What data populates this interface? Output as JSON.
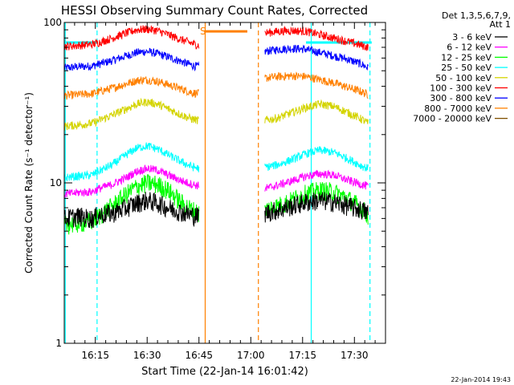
{
  "chart_data": {
    "type": "line",
    "title": "HESSI Observing Summary Count Rates, Corrected",
    "ylabel": "Corrected Count Rate (s⁻¹ detector⁻¹)",
    "xlabel": "Start Time (22-Jan-14 16:01:42)",
    "timestamp": "22-Jan-2014 19:43",
    "x_unit": "minutes after 16:00",
    "xlim": [
      6,
      99
    ],
    "ylim": [
      1,
      100
    ],
    "yscale": "log",
    "x_ticks": [
      {
        "label": "16:15",
        "x": 15
      },
      {
        "label": "16:30",
        "x": 30
      },
      {
        "label": "16:45",
        "x": 45
      },
      {
        "label": "17:00",
        "x": 60
      },
      {
        "label": "17:15",
        "x": 75
      },
      {
        "label": "17:30",
        "x": 90
      }
    ],
    "y_ticks": [
      {
        "label": "1",
        "y": 1
      },
      {
        "label": "10",
        "y": 10
      },
      {
        "label": "100",
        "y": 100
      }
    ],
    "legend": {
      "header": [
        "Det 1,3,5,6,7,9,",
        "Att 1"
      ],
      "placement": "top-right, outside plot"
    },
    "colors": {
      "cyan": "#00ffff",
      "orange": "#ff8000",
      "saa_line": "#00d4d4"
    },
    "series": [
      {
        "name": "3 - 6 keV",
        "color": "#000000",
        "points": [
          [
            6,
            6.0
          ],
          [
            10,
            6.2
          ],
          [
            14,
            6.0
          ],
          [
            16,
            6.3
          ],
          [
            20,
            6.5
          ],
          [
            24,
            7.0
          ],
          [
            27,
            7.5
          ],
          [
            30,
            7.8
          ],
          [
            33,
            7.5
          ],
          [
            36,
            7.0
          ],
          [
            40,
            6.6
          ],
          [
            43,
            6.3
          ],
          [
            45,
            6.2
          ],
          [
            52,
            null
          ],
          [
            62,
            null
          ],
          [
            64,
            6.5
          ],
          [
            68,
            6.8
          ],
          [
            72,
            7.2
          ],
          [
            76,
            7.6
          ],
          [
            80,
            7.8
          ],
          [
            84,
            7.6
          ],
          [
            88,
            7.2
          ],
          [
            92,
            6.8
          ],
          [
            94,
            6.5
          ]
        ]
      },
      {
        "name": "6 - 12 keV",
        "color": "#ff00ff",
        "points": [
          [
            6,
            8.5
          ],
          [
            10,
            8.7
          ],
          [
            14,
            8.8
          ],
          [
            16,
            9.2
          ],
          [
            20,
            9.8
          ],
          [
            24,
            10.8
          ],
          [
            27,
            11.8
          ],
          [
            30,
            12.3
          ],
          [
            33,
            12.0
          ],
          [
            36,
            11.2
          ],
          [
            40,
            10.3
          ],
          [
            43,
            9.8
          ],
          [
            45,
            9.6
          ],
          [
            52,
            null
          ],
          [
            62,
            null
          ],
          [
            64,
            9.2
          ],
          [
            68,
            9.7
          ],
          [
            72,
            10.3
          ],
          [
            76,
            11.0
          ],
          [
            80,
            11.4
          ],
          [
            84,
            11.2
          ],
          [
            88,
            10.4
          ],
          [
            92,
            9.8
          ],
          [
            94,
            9.5
          ]
        ]
      },
      {
        "name": "12 - 25 keV",
        "color": "#00ff00",
        "points": [
          [
            6,
            5.5
          ],
          [
            10,
            5.6
          ],
          [
            14,
            5.8
          ],
          [
            16,
            6.2
          ],
          [
            20,
            7.2
          ],
          [
            24,
            8.5
          ],
          [
            27,
            9.5
          ],
          [
            30,
            10.0
          ],
          [
            33,
            9.8
          ],
          [
            36,
            9.0
          ],
          [
            40,
            7.5
          ],
          [
            43,
            6.8
          ],
          [
            45,
            6.5
          ],
          [
            52,
            null
          ],
          [
            62,
            null
          ],
          [
            64,
            6.8
          ],
          [
            68,
            7.2
          ],
          [
            72,
            7.8
          ],
          [
            76,
            8.6
          ],
          [
            80,
            9.0
          ],
          [
            84,
            8.8
          ],
          [
            88,
            8.0
          ],
          [
            92,
            7.0
          ],
          [
            94,
            6.3
          ]
        ]
      },
      {
        "name": "25 - 50 keV",
        "color": "#00ffff",
        "points": [
          [
            6,
            10.8
          ],
          [
            10,
            11.0
          ],
          [
            14,
            11.2
          ],
          [
            16,
            11.8
          ],
          [
            20,
            13.0
          ],
          [
            24,
            15.0
          ],
          [
            27,
            16.5
          ],
          [
            30,
            17.0
          ],
          [
            33,
            16.3
          ],
          [
            36,
            15.0
          ],
          [
            40,
            13.5
          ],
          [
            43,
            12.6
          ],
          [
            45,
            12.3
          ],
          [
            52,
            null
          ],
          [
            62,
            null
          ],
          [
            64,
            12.5
          ],
          [
            68,
            13.0
          ],
          [
            72,
            14.0
          ],
          [
            76,
            15.2
          ],
          [
            80,
            16.0
          ],
          [
            84,
            15.5
          ],
          [
            88,
            14.2
          ],
          [
            92,
            12.8
          ],
          [
            94,
            12.3
          ]
        ]
      },
      {
        "name": "50 - 100 keV",
        "color": "#d4d400",
        "points": [
          [
            6,
            22.5
          ],
          [
            10,
            23.0
          ],
          [
            14,
            23.5
          ],
          [
            16,
            24.5
          ],
          [
            20,
            26.5
          ],
          [
            24,
            29.0
          ],
          [
            27,
            31.0
          ],
          [
            30,
            32.0
          ],
          [
            33,
            31.0
          ],
          [
            36,
            29.0
          ],
          [
            40,
            26.5
          ],
          [
            43,
            25.0
          ],
          [
            45,
            24.5
          ],
          [
            52,
            null
          ],
          [
            62,
            null
          ],
          [
            64,
            24.5
          ],
          [
            68,
            25.5
          ],
          [
            72,
            27.5
          ],
          [
            76,
            29.5
          ],
          [
            80,
            31.0
          ],
          [
            84,
            30.0
          ],
          [
            88,
            27.5
          ],
          [
            92,
            25.0
          ],
          [
            94,
            23.5
          ]
        ]
      },
      {
        "name": "100 - 300 keV",
        "color": "#ff0000",
        "points": [
          [
            6,
            71
          ],
          [
            10,
            72
          ],
          [
            14,
            73
          ],
          [
            16,
            75
          ],
          [
            20,
            80
          ],
          [
            24,
            86
          ],
          [
            27,
            90
          ],
          [
            30,
            91
          ],
          [
            33,
            89
          ],
          [
            36,
            84
          ],
          [
            40,
            78
          ],
          [
            43,
            74
          ],
          [
            45,
            72
          ],
          [
            52,
            null
          ],
          [
            62,
            null
          ],
          [
            64,
            86
          ],
          [
            68,
            88
          ],
          [
            72,
            89
          ],
          [
            76,
            88
          ],
          [
            80,
            84
          ],
          [
            84,
            80
          ],
          [
            88,
            76
          ],
          [
            92,
            72
          ],
          [
            94,
            70
          ]
        ]
      },
      {
        "name": "300 - 800 keV",
        "color": "#0000ff",
        "points": [
          [
            6,
            52
          ],
          [
            10,
            53
          ],
          [
            14,
            53.5
          ],
          [
            16,
            55
          ],
          [
            20,
            58
          ],
          [
            24,
            62
          ],
          [
            27,
            65
          ],
          [
            30,
            66
          ],
          [
            33,
            64
          ],
          [
            36,
            61
          ],
          [
            40,
            57
          ],
          [
            43,
            54
          ],
          [
            45,
            53
          ],
          [
            52,
            null
          ],
          [
            62,
            null
          ],
          [
            64,
            66
          ],
          [
            68,
            68
          ],
          [
            72,
            69
          ],
          [
            76,
            68
          ],
          [
            80,
            65
          ],
          [
            84,
            62
          ],
          [
            88,
            59
          ],
          [
            92,
            55
          ],
          [
            94,
            52
          ]
        ]
      },
      {
        "name": "800 - 7000 keV",
        "color": "#ff8000",
        "points": [
          [
            6,
            35
          ],
          [
            10,
            35.5
          ],
          [
            14,
            36
          ],
          [
            16,
            37
          ],
          [
            20,
            39
          ],
          [
            24,
            41.5
          ],
          [
            27,
            43.5
          ],
          [
            30,
            44
          ],
          [
            33,
            43
          ],
          [
            36,
            41
          ],
          [
            40,
            38.5
          ],
          [
            43,
            36.5
          ],
          [
            45,
            36
          ],
          [
            52,
            null
          ],
          [
            62,
            null
          ],
          [
            64,
            45
          ],
          [
            68,
            46
          ],
          [
            72,
            46.5
          ],
          [
            76,
            46
          ],
          [
            80,
            44
          ],
          [
            84,
            42
          ],
          [
            88,
            39.5
          ],
          [
            92,
            37
          ],
          [
            94,
            35.5
          ]
        ]
      },
      {
        "name": "7000 - 20000 keV",
        "color": "#7f4f00",
        "points": []
      }
    ],
    "annotations": [
      {
        "kind": "attenuator/SAA bar",
        "color": "#00ffff",
        "x_range": [
          6,
          15.5
        ],
        "y": 75
      },
      {
        "kind": "attenuator/SAA bar",
        "color": "#00ffff",
        "x_range": [
          76,
          95
        ],
        "y": 75
      },
      {
        "kind": "night bar",
        "color": "#ff8000",
        "x_range": [
          46.5,
          59
        ],
        "y": 88
      },
      {
        "kind": "label",
        "text": "S",
        "color": "#ff8000",
        "x": 45.3,
        "y": 88
      }
    ],
    "vlines": [
      {
        "x": 6.3,
        "color": "#00ffff",
        "style": "solid"
      },
      {
        "x": 15.5,
        "color": "#00ffff",
        "style": "dashed"
      },
      {
        "x": 46.8,
        "color": "#ff8000",
        "style": "solid"
      },
      {
        "x": 62.2,
        "color": "#ff8000",
        "style": "dashed"
      },
      {
        "x": 77.5,
        "color": "#00ffff",
        "style": "solid"
      },
      {
        "x": 94.5,
        "color": "#00ffff",
        "style": "dashed"
      }
    ]
  }
}
